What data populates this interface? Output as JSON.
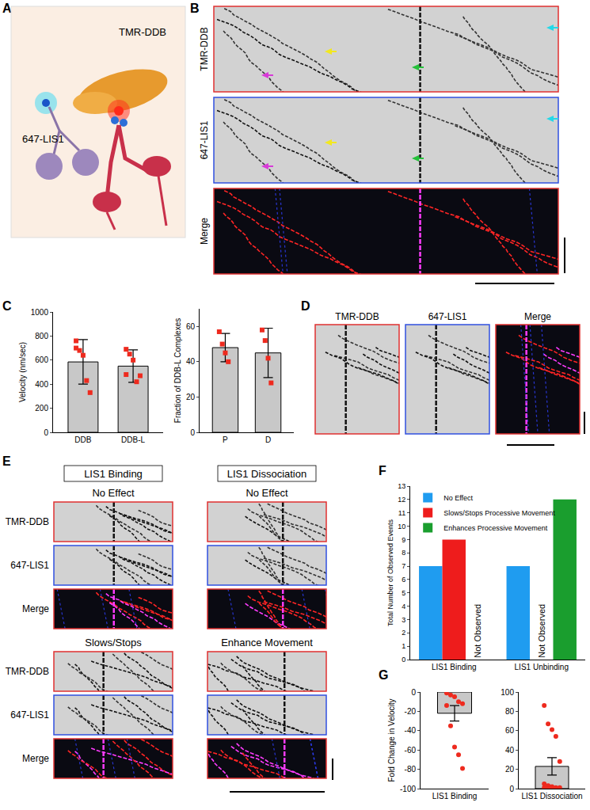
{
  "panels": {
    "A": {
      "label": "A",
      "texts": [
        "TMR-DDB",
        "647-LIS1"
      ]
    },
    "B": {
      "label": "B",
      "rows": [
        "TMR-DDB",
        "647-LIS1",
        "Merge"
      ]
    },
    "C": {
      "label": "C"
    },
    "D": {
      "label": "D",
      "columns": [
        "TMR-DDB",
        "647-LIS1",
        "Merge"
      ]
    },
    "E": {
      "label": "E",
      "headers": [
        "LIS1 Binding",
        "LIS1 Dissociation"
      ],
      "conditions": [
        [
          "No Effect",
          "No Effect"
        ],
        [
          "Slows/Stops",
          "Enhance Movement"
        ]
      ],
      "rows": [
        "TMR-DDB",
        "647-LIS1",
        "Merge"
      ]
    },
    "F": {
      "label": "F"
    },
    "G": {
      "label": "G"
    }
  },
  "chart_data": [
    {
      "type": "bar",
      "categories": [
        "DDB",
        "DDB-L"
      ],
      "values": [
        585,
        550
      ],
      "errors": [
        185,
        135
      ],
      "points": [
        [
          760,
          680,
          640,
          430,
          330,
          700
        ],
        [
          690,
          650,
          600,
          420,
          470,
          480
        ]
      ],
      "ylabel": "Velocity (nm/sec)",
      "ylim": [
        0,
        1000
      ],
      "yticks": [
        0,
        200,
        400,
        600,
        800,
        1000
      ],
      "color": "#c8c8c8"
    },
    {
      "type": "bar",
      "categories": [
        "P",
        "D"
      ],
      "values": [
        48,
        45
      ],
      "errors": [
        8,
        14
      ],
      "points": [
        [
          57,
          50,
          45,
          40
        ],
        [
          58,
          52,
          42,
          28
        ]
      ],
      "ylabel": "Fraction of DDB-L Complexes",
      "ylim": [
        0,
        70
      ],
      "yticks": [
        0,
        20,
        40,
        60
      ],
      "color": "#c8c8c8"
    },
    {
      "type": "bar",
      "categories": [
        "LIS1 Binding",
        "LIS1 Unbinding"
      ],
      "series": [
        {
          "name": "No Effect",
          "color": "#1f9cf0",
          "values": [
            7,
            7
          ]
        },
        {
          "name": "Slows/Stops Processive Movement",
          "color": "#ee1c1c",
          "values": [
            9,
            null
          ]
        },
        {
          "name": "Enhances Processive Movement",
          "color": "#1a9e2e",
          "values": [
            null,
            12
          ]
        }
      ],
      "annotations": [
        {
          "text": "Not Observed",
          "category": "LIS1 Binding",
          "series": "Enhances Processive Movement"
        },
        {
          "text": "Not Observed",
          "category": "LIS1 Unbinding",
          "series": "Slows/Stops Processive Movement"
        }
      ],
      "ylabel": "Total Number of Observed Events",
      "ylim": [
        0,
        13
      ],
      "yticks": [
        0,
        1,
        2,
        3,
        4,
        5,
        6,
        7,
        8,
        9,
        10,
        11,
        12,
        13
      ],
      "legend": "top left"
    },
    {
      "type": "bar",
      "categories": [
        "LIS1 Binding"
      ],
      "values": [
        -22
      ],
      "errors": [
        8
      ],
      "points": [
        [
          -1,
          -3,
          -5,
          -10,
          -12,
          -14,
          -35,
          -57,
          -65,
          -79
        ]
      ],
      "ylabel": "Fold Change in Velocity",
      "ylim": [
        -100,
        0
      ],
      "yticks": [
        -100,
        -80,
        -60,
        -40,
        -20,
        0
      ],
      "color": "#c8c8c8"
    },
    {
      "type": "bar",
      "categories": [
        "LIS1 Dissociation"
      ],
      "values": [
        23
      ],
      "errors": [
        9
      ],
      "points": [
        [
          86,
          67,
          61,
          54,
          28,
          5,
          3,
          2,
          1,
          1,
          1,
          0
        ]
      ],
      "ylim": [
        0,
        100
      ],
      "yticks": [
        0,
        20,
        40,
        60,
        80,
        100
      ],
      "color": "#c8c8c8"
    }
  ]
}
